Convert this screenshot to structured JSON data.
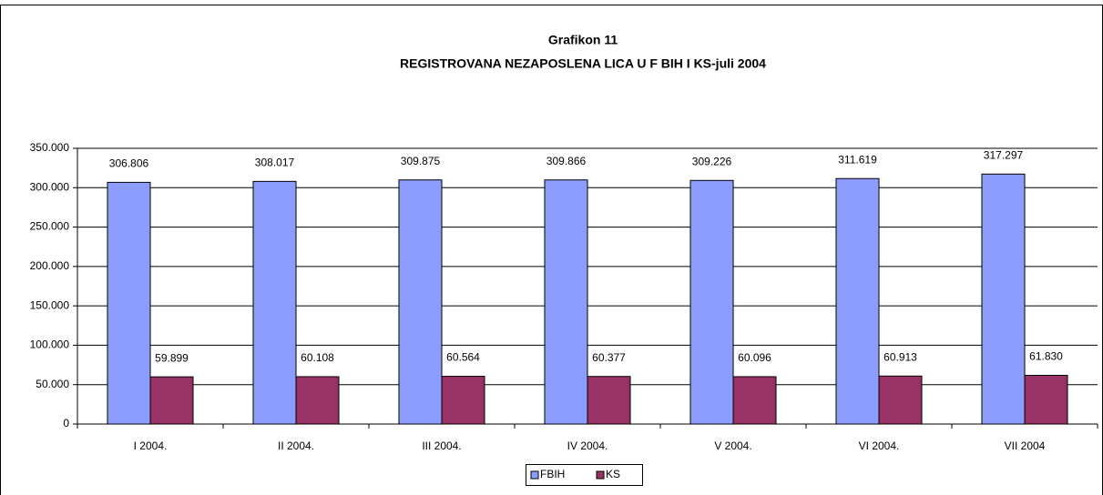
{
  "chart_data": {
    "type": "bar",
    "title": "Grafikon 11",
    "subtitle": "REGISTROVANA NEZAPOSLENA LICA U F BIH I KS-juli 2004",
    "categories": [
      "I 2004.",
      "II 2004.",
      "III  2004.",
      "IV 2004.",
      "V  2004.",
      "VI 2004.",
      "VII 2004"
    ],
    "series": [
      {
        "name": "FBIH",
        "color": "#8c9cff",
        "values": [
          306806,
          308017,
          309875,
          309866,
          309226,
          311619,
          317297
        ],
        "value_labels": [
          "306.806",
          "308.017",
          "309.875",
          "309.866",
          "309.226",
          "311.619",
          "317.297"
        ]
      },
      {
        "name": "KS",
        "color": "#993366",
        "values": [
          59899,
          60108,
          60564,
          60377,
          60096,
          60913,
          61830
        ],
        "value_labels": [
          "59.899",
          "60.108",
          "60.564",
          "60.377",
          "60.096",
          "60.913",
          "61.830"
        ]
      }
    ],
    "ylim": [
      0,
      350000
    ],
    "yticks": [
      0,
      {
        "value": 50000,
        "label": "50.000"
      },
      {
        "value": 100000,
        "label": "100.000"
      },
      {
        "value": 150000,
        "label": "150.000"
      },
      {
        "value": 200000,
        "label": "200.000"
      },
      {
        "value": 250000,
        "label": "250.000"
      },
      {
        "value": 300000,
        "label": "300.000"
      },
      {
        "value": 350000,
        "label": "350.000"
      }
    ],
    "grid": true,
    "legend": "bottom"
  }
}
